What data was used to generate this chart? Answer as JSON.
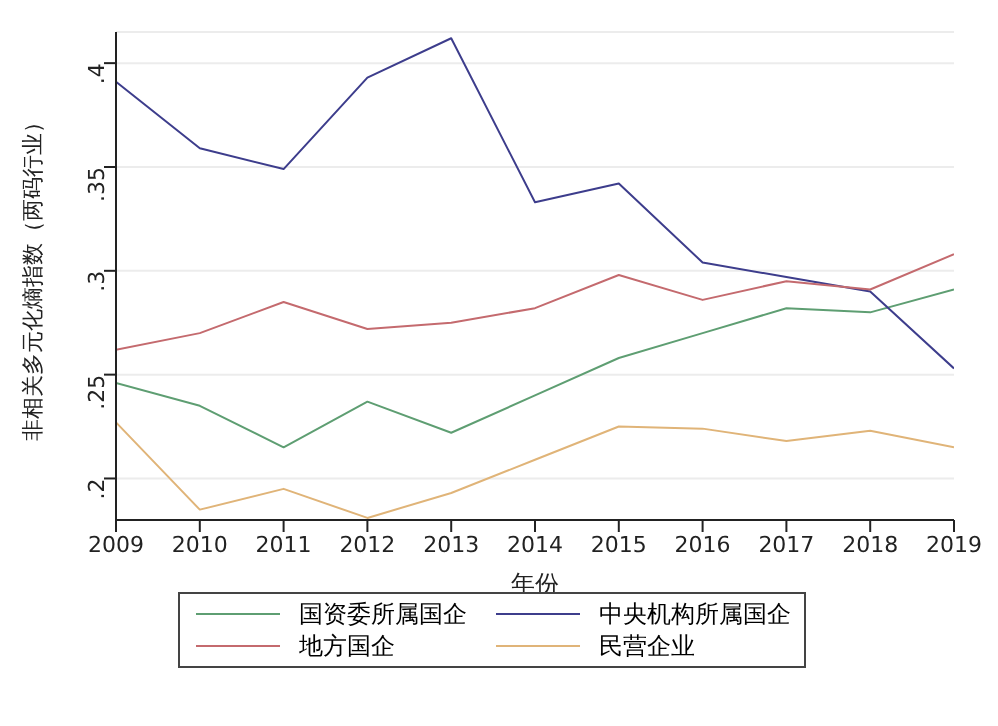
{
  "chart_data": {
    "type": "line",
    "xlabel": "年份",
    "ylabel": "非相关多元化熵指数（两码行业）",
    "x": [
      2009,
      2010,
      2011,
      2012,
      2013,
      2014,
      2015,
      2016,
      2017,
      2018,
      2019
    ],
    "xlim": [
      2009,
      2019
    ],
    "xticks": [
      2009,
      2010,
      2011,
      2012,
      2013,
      2014,
      2015,
      2016,
      2017,
      2018,
      2019
    ],
    "ylim": [
      0.18,
      0.415
    ],
    "yticks": [
      {
        "value": 0.2,
        "label": ".2"
      },
      {
        "value": 0.25,
        "label": ".25"
      },
      {
        "value": 0.3,
        "label": ".3"
      },
      {
        "value": 0.35,
        "label": ".35"
      },
      {
        "value": 0.4,
        "label": ".4"
      }
    ],
    "grid": "y",
    "legend": "bottom",
    "marker": "none",
    "line_style": "solid",
    "series": [
      {
        "name": "国资委所属国企",
        "color": "#5e9e72",
        "values": [
          0.246,
          0.235,
          0.215,
          0.237,
          0.222,
          0.24,
          0.258,
          0.27,
          0.282,
          0.28,
          0.291
        ]
      },
      {
        "name": "中央机构所属国企",
        "color": "#3d3d8c",
        "values": [
          0.391,
          0.359,
          0.349,
          0.393,
          0.412,
          0.333,
          0.342,
          0.304,
          0.297,
          0.29,
          0.253
        ]
      },
      {
        "name": "地方国企",
        "color": "#c46a6e",
        "values": [
          0.262,
          0.27,
          0.285,
          0.272,
          0.275,
          0.282,
          0.298,
          0.286,
          0.295,
          0.291,
          0.308
        ]
      },
      {
        "name": "民营企业",
        "color": "#e0b478",
        "values": [
          0.227,
          0.185,
          0.195,
          0.181,
          0.193,
          0.209,
          0.225,
          0.224,
          0.218,
          0.223,
          0.215
        ]
      }
    ]
  }
}
